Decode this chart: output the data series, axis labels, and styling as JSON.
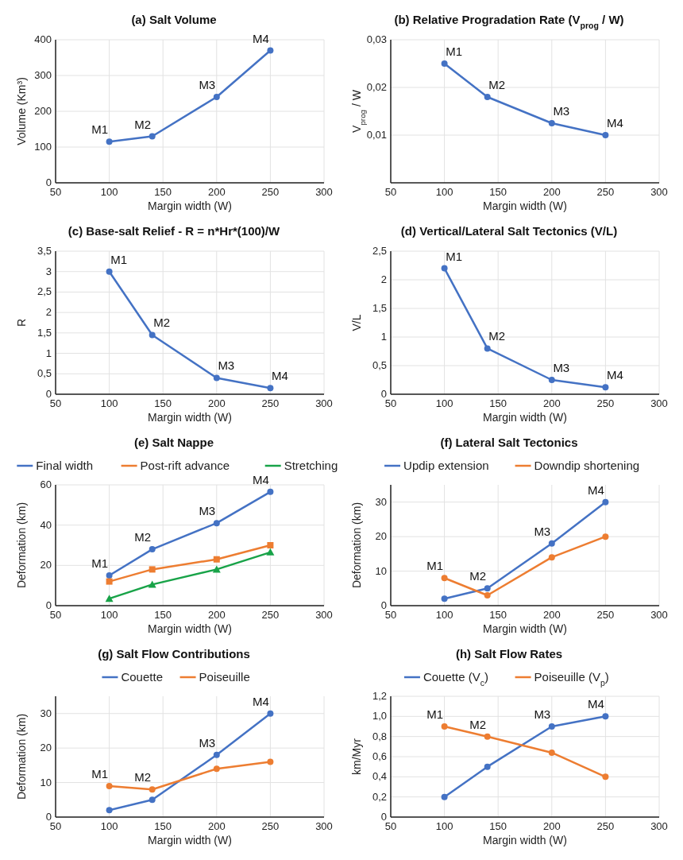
{
  "chart_data": [
    {
      "type": "line",
      "title": "(a)   Salt Volume",
      "xlabel": "Margin width (W)",
      "ylabel": "Volume (Km³)",
      "x": [
        100,
        140,
        200,
        250
      ],
      "series": [
        {
          "color": "#4472c4",
          "values": [
            115,
            130,
            240,
            370
          ]
        }
      ],
      "xlim": [
        50,
        300
      ],
      "xticks": [
        50,
        100,
        150,
        200,
        250,
        300
      ],
      "ylim": [
        0,
        400
      ],
      "yticks": [
        0,
        100,
        200,
        300,
        400
      ],
      "grid": true,
      "legend": false,
      "marker": "circle",
      "annotations": [
        {
          "text": "M1",
          "x": 100,
          "y": 115
        },
        {
          "text": "M2",
          "x": 140,
          "y": 130
        },
        {
          "text": "M3",
          "x": 200,
          "y": 240
        },
        {
          "text": "M4",
          "x": 250,
          "y": 370
        }
      ]
    },
    {
      "type": "line",
      "title": "(b) Relative Progradation Rate (V$_{prog}$ / W)",
      "xlabel": "Margin width (W)",
      "ylabel": "V$_{prog}$ / W",
      "x": [
        100,
        140,
        200,
        250
      ],
      "series": [
        {
          "color": "#4472c4",
          "values": [
            0.025,
            0.018,
            0.0125,
            0.01
          ]
        }
      ],
      "xlim": [
        50,
        300
      ],
      "xticks": [
        50,
        100,
        150,
        200,
        250,
        300
      ],
      "ylim": [
        0,
        0.03
      ],
      "yticks": [
        {
          "value": 0.01,
          "label": "0,01"
        },
        {
          "value": 0.02,
          "label": "0,02"
        },
        {
          "value": 0.03,
          "label": "0,03"
        }
      ],
      "grid": true,
      "legend": false,
      "marker": "circle",
      "annotations": [
        {
          "text": "M1",
          "x": 100,
          "y": 0.025
        },
        {
          "text": "M2",
          "x": 140,
          "y": 0.018
        },
        {
          "text": "M3",
          "x": 200,
          "y": 0.0125
        },
        {
          "text": "M4",
          "x": 250,
          "y": 0.01
        }
      ]
    },
    {
      "type": "line",
      "title": "(c)   Base-salt Relief - R = n*Hr*(100)/W",
      "xlabel": "Margin width (W)",
      "ylabel": "R",
      "x": [
        100,
        140,
        200,
        250
      ],
      "series": [
        {
          "color": "#4472c4",
          "values": [
            3,
            1.45,
            0.4,
            0.15
          ]
        }
      ],
      "xlim": [
        50,
        300
      ],
      "xticks": [
        50,
        100,
        150,
        200,
        250,
        300
      ],
      "ylim": [
        0,
        3.5
      ],
      "yticks": [
        0,
        {
          "value": 0.5,
          "label": "0,5"
        },
        1,
        {
          "value": 1.5,
          "label": "1,5"
        },
        2,
        {
          "value": 2.5,
          "label": "2,5"
        },
        3,
        {
          "value": 3.5,
          "label": "3,5"
        }
      ],
      "grid": true,
      "legend": false,
      "marker": "circle",
      "annotations": [
        {
          "text": "M1",
          "x": 100,
          "y": 3
        },
        {
          "text": "M2",
          "x": 140,
          "y": 1.45
        },
        {
          "text": "M3",
          "x": 200,
          "y": 0.4
        },
        {
          "text": "M4",
          "x": 250,
          "y": 0.15
        }
      ]
    },
    {
      "type": "line",
      "title": "(d)  Vertical/Lateral Salt Tectonics (V/L)",
      "xlabel": "Margin width (W)",
      "ylabel": "V/L",
      "x": [
        100,
        140,
        200,
        250
      ],
      "series": [
        {
          "color": "#4472c4",
          "values": [
            2.2,
            0.8,
            0.25,
            0.12
          ]
        }
      ],
      "xlim": [
        50,
        300
      ],
      "xticks": [
        50,
        100,
        150,
        200,
        250,
        300
      ],
      "ylim": [
        0,
        2.5
      ],
      "yticks": [
        0,
        {
          "value": 0.5,
          "label": "0,5"
        },
        1,
        {
          "value": 1.5,
          "label": "1,5"
        },
        2,
        {
          "value": 2.5,
          "label": "2,5"
        }
      ],
      "grid": true,
      "legend": false,
      "marker": "circle",
      "annotations": [
        {
          "text": "M1",
          "x": 100,
          "y": 2.2
        },
        {
          "text": "M2",
          "x": 140,
          "y": 0.8
        },
        {
          "text": "M3",
          "x": 200,
          "y": 0.25
        },
        {
          "text": "M4",
          "x": 250,
          "y": 0.12
        }
      ]
    },
    {
      "type": "line",
      "title": "(e)   Salt Nappe",
      "xlabel": "Margin width (W)",
      "ylabel": "Deformation (km)",
      "x": [
        100,
        140,
        200,
        250
      ],
      "series": [
        {
          "name": "Final width",
          "color": "#4472c4",
          "marker": "circle",
          "values": [
            15,
            28,
            41,
            56.5
          ]
        },
        {
          "name": "Post-rift advance",
          "color": "#ed7d31",
          "marker": "square",
          "values": [
            12,
            18,
            23,
            30
          ]
        },
        {
          "name": "Stretching",
          "color": "#18a348",
          "marker": "triangle",
          "values": [
            3.5,
            10.5,
            18,
            26.5
          ]
        }
      ],
      "xlim": [
        50,
        300
      ],
      "xticks": [
        50,
        100,
        150,
        200,
        250,
        300
      ],
      "ylim": [
        0,
        60
      ],
      "yticks": [
        0,
        20,
        40,
        60
      ],
      "grid": true,
      "legend": "top",
      "annotations": [
        {
          "text": "M1",
          "x": 100,
          "y": 15
        },
        {
          "text": "M2",
          "x": 140,
          "y": 28
        },
        {
          "text": "M3",
          "x": 200,
          "y": 41
        },
        {
          "text": "M4",
          "x": 250,
          "y": 56.5
        }
      ]
    },
    {
      "type": "line",
      "title": "(f)   Lateral Salt Tectonics",
      "xlabel": "Margin width (W)",
      "ylabel": "Deformation (km)",
      "x": [
        100,
        140,
        200,
        250
      ],
      "series": [
        {
          "name": "Updip extension",
          "color": "#4472c4",
          "values": [
            2,
            5,
            18,
            30
          ]
        },
        {
          "name": "Downdip shortening",
          "color": "#ed7d31",
          "values": [
            8,
            3,
            14,
            20
          ]
        }
      ],
      "xlim": [
        50,
        300
      ],
      "xticks": [
        50,
        100,
        150,
        200,
        250,
        300
      ],
      "ylim": [
        0,
        35
      ],
      "yticks": [
        0,
        10,
        20,
        30
      ],
      "grid": true,
      "legend": "top",
      "marker": "circle",
      "annotations": [
        {
          "text": "M1",
          "x": 100,
          "y": 8
        },
        {
          "text": "M2",
          "x": 140,
          "y": 5
        },
        {
          "text": "M3",
          "x": 200,
          "y": 18
        },
        {
          "text": "M4",
          "x": 250,
          "y": 30
        }
      ]
    },
    {
      "type": "line",
      "title": "(g)   Salt Flow Contributions",
      "xlabel": "Margin width (W)",
      "ylabel": "Deformation (km)",
      "x": [
        100,
        140,
        200,
        250
      ],
      "series": [
        {
          "name": "Couette",
          "color": "#4472c4",
          "values": [
            2,
            5,
            18,
            30
          ]
        },
        {
          "name": "Poiseuille",
          "color": "#ed7d31",
          "values": [
            9,
            8,
            14,
            16
          ]
        }
      ],
      "xlim": [
        50,
        300
      ],
      "xticks": [
        50,
        100,
        150,
        200,
        250,
        300
      ],
      "ylim": [
        0,
        35
      ],
      "yticks": [
        0,
        10,
        20,
        30
      ],
      "grid": true,
      "legend": "top",
      "marker": "circle",
      "annotations": [
        {
          "text": "M1",
          "x": 100,
          "y": 9
        },
        {
          "text": "M2",
          "x": 140,
          "y": 8
        },
        {
          "text": "M3",
          "x": 200,
          "y": 18
        },
        {
          "text": "M4",
          "x": 250,
          "y": 30
        }
      ]
    },
    {
      "type": "line",
      "title": "(h)   Salt Flow Rates",
      "xlabel": "Margin width (W)",
      "ylabel": "km/Myr",
      "x": [
        100,
        140,
        200,
        250
      ],
      "series": [
        {
          "name": "Couette (V$_{c}$)",
          "color": "#4472c4",
          "values": [
            0.2,
            0.5,
            0.9,
            1.0
          ]
        },
        {
          "name": "Poiseuille (V$_{p}$)",
          "color": "#ed7d31",
          "values": [
            0.9,
            0.8,
            0.64,
            0.4
          ]
        }
      ],
      "xlim": [
        50,
        300
      ],
      "xticks": [
        50,
        100,
        150,
        200,
        250,
        300
      ],
      "ylim": [
        0,
        1.2
      ],
      "yticks": [
        0,
        {
          "value": 0.2,
          "label": "0,2"
        },
        {
          "value": 0.4,
          "label": "0,4"
        },
        {
          "value": 0.6,
          "label": "0,6"
        },
        {
          "value": 0.8,
          "label": "0,8"
        },
        {
          "value": 1.0,
          "label": "1,0"
        },
        {
          "value": 1.2,
          "label": "1,2"
        }
      ],
      "grid": true,
      "legend": "top",
      "marker": "circle",
      "annotations": [
        {
          "text": "M1",
          "x": 100,
          "y": 0.9
        },
        {
          "text": "M2",
          "x": 140,
          "y": 0.8
        },
        {
          "text": "M3",
          "x": 200,
          "y": 0.9
        },
        {
          "text": "M4",
          "x": 250,
          "y": 1.0
        }
      ]
    }
  ]
}
